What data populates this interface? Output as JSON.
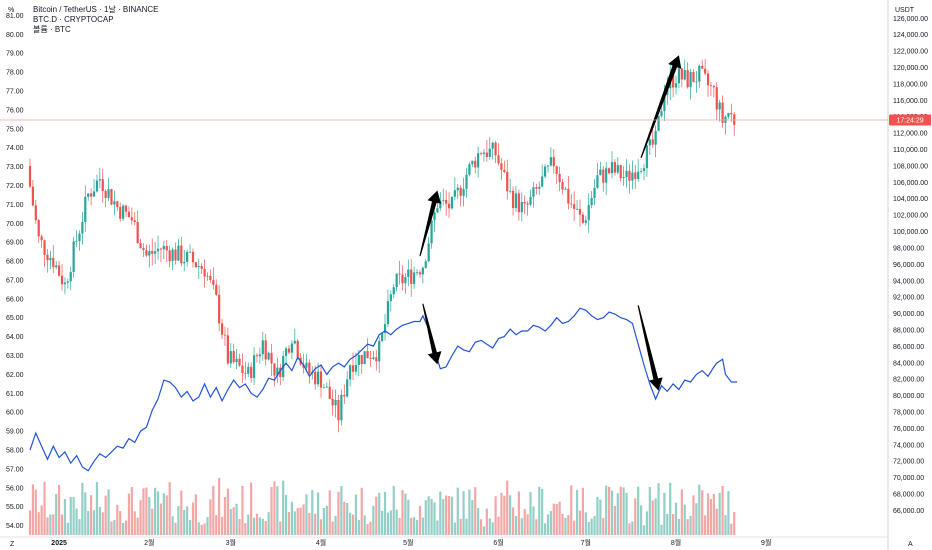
{
  "legend": {
    "line1": "Bitcoin / TetherUS · 1날 · BINANCE",
    "line2": "BTC.D · CRYPTOCAP",
    "line3": "볼륨 · BTC"
  },
  "left_axis": {
    "unit": "%",
    "min": 53.5,
    "max": 81.5,
    "ticks": [
      81,
      80,
      79,
      78,
      77,
      76,
      75,
      74,
      73,
      72,
      71,
      70,
      69,
      68,
      67,
      66,
      65,
      64,
      63,
      62,
      61,
      60,
      59,
      58,
      57,
      56,
      55,
      54
    ]
  },
  "right_axis": {
    "unit": "USDT",
    "min": 63000,
    "max": 127500,
    "ticks": [
      126000,
      124000,
      122000,
      120000,
      118000,
      116000,
      114000,
      112000,
      110000,
      108000,
      106000,
      104000,
      102000,
      100000,
      98000,
      96000,
      94000,
      92000,
      90000,
      88000,
      86000,
      84000,
      82000,
      80000,
      78000,
      76000,
      74000,
      72000,
      70000,
      68000,
      66000
    ],
    "tick_labels": [
      "126,000.00",
      "124,000.00",
      "122,000.00",
      "120,000.00",
      "118,000.00",
      "116,000.00",
      "114,000.00",
      "112,000.00",
      "110,000.00",
      "108,000.00",
      "106,000.00",
      "104,000.00",
      "102,000.00",
      "100,000.00",
      "98,000.00",
      "96,000.00",
      "94,000.00",
      "92,000.00",
      "90,000.00",
      "88,000.00",
      "86,000.00",
      "84,000.00",
      "82,000.00",
      "80,000.00",
      "78,000.00",
      "76,000.00",
      "74,000.00",
      "72,000.00",
      "70,000.00",
      "68,000.00",
      "66,000.00"
    ]
  },
  "price_tag": {
    "value": 113600,
    "label": "17:24:29"
  },
  "corner_left": "Z",
  "corner_right": "A",
  "colors": {
    "up": "#26a69a",
    "down": "#ef5350",
    "vol_up": "#93cfc7",
    "vol_down": "#f4a6a5",
    "dominance": "#2154d6",
    "arrow": "#000000",
    "price_line": "#f5a3a2"
  },
  "chart_data": [
    {
      "type": "candlestick",
      "name": "Bitcoin / TetherUS",
      "axis": "right",
      "x_axis_labels": [
        {
          "day": 10,
          "label": "2025"
        },
        {
          "day": 41,
          "label": "2월"
        },
        {
          "day": 69,
          "label": "3월"
        },
        {
          "day": 100,
          "label": "4월"
        },
        {
          "day": 130,
          "label": "5월"
        },
        {
          "day": 161,
          "label": "6월"
        },
        {
          "day": 191,
          "label": "7월"
        },
        {
          "day": 222,
          "label": "8월"
        },
        {
          "day": 253,
          "label": "9월"
        }
      ],
      "key_points": [
        {
          "day": 0,
          "close": 105500
        },
        {
          "day": 3,
          "close": 99000
        },
        {
          "day": 8,
          "close": 96500
        },
        {
          "day": 12,
          "close": 93500
        },
        {
          "day": 20,
          "close": 104500
        },
        {
          "day": 24,
          "close": 106500
        },
        {
          "day": 30,
          "close": 103000
        },
        {
          "day": 35,
          "close": 101500
        },
        {
          "day": 40,
          "close": 97000
        },
        {
          "day": 45,
          "close": 98000
        },
        {
          "day": 55,
          "close": 96500
        },
        {
          "day": 60,
          "close": 95500
        },
        {
          "day": 64,
          "close": 91500
        },
        {
          "day": 68,
          "close": 84500
        },
        {
          "day": 75,
          "close": 82500
        },
        {
          "day": 80,
          "close": 86500
        },
        {
          "day": 85,
          "close": 82500
        },
        {
          "day": 90,
          "close": 87500
        },
        {
          "day": 95,
          "close": 83000
        },
        {
          "day": 100,
          "close": 82000
        },
        {
          "day": 106,
          "close": 77500
        },
        {
          "day": 110,
          "close": 84000
        },
        {
          "day": 115,
          "close": 85000
        },
        {
          "day": 120,
          "close": 85500
        },
        {
          "day": 125,
          "close": 93500
        },
        {
          "day": 130,
          "close": 94500
        },
        {
          "day": 135,
          "close": 96000
        },
        {
          "day": 140,
          "close": 103500
        },
        {
          "day": 145,
          "close": 103000
        },
        {
          "day": 150,
          "close": 107000
        },
        {
          "day": 155,
          "close": 110000
        },
        {
          "day": 160,
          "close": 109500
        },
        {
          "day": 165,
          "close": 104500
        },
        {
          "day": 170,
          "close": 102500
        },
        {
          "day": 175,
          "close": 105500
        },
        {
          "day": 180,
          "close": 108500
        },
        {
          "day": 185,
          "close": 104000
        },
        {
          "day": 190,
          "close": 101000
        },
        {
          "day": 195,
          "close": 106500
        },
        {
          "day": 200,
          "close": 107500
        },
        {
          "day": 205,
          "close": 106500
        },
        {
          "day": 210,
          "close": 108500
        },
        {
          "day": 215,
          "close": 111000
        },
        {
          "day": 218,
          "close": 117500
        },
        {
          "day": 222,
          "close": 119000
        },
        {
          "day": 226,
          "close": 118500
        },
        {
          "day": 230,
          "close": 119000
        },
        {
          "day": 235,
          "close": 117000
        },
        {
          "day": 238,
          "close": 113500
        },
        {
          "day": 240,
          "close": 114500
        },
        {
          "day": 242,
          "close": 113600
        }
      ]
    },
    {
      "type": "line",
      "name": "BTC.D",
      "axis": "left",
      "points": [
        [
          0,
          58.0
        ],
        [
          2,
          58.9
        ],
        [
          4,
          58.2
        ],
        [
          6,
          57.5
        ],
        [
          8,
          58.2
        ],
        [
          10,
          57.6
        ],
        [
          12,
          57.9
        ],
        [
          14,
          57.3
        ],
        [
          16,
          57.7
        ],
        [
          18,
          57.1
        ],
        [
          20,
          56.9
        ],
        [
          22,
          57.4
        ],
        [
          24,
          57.8
        ],
        [
          26,
          57.6
        ],
        [
          28,
          57.9
        ],
        [
          30,
          58.2
        ],
        [
          32,
          58.1
        ],
        [
          34,
          58.6
        ],
        [
          36,
          58.4
        ],
        [
          38,
          59.0
        ],
        [
          40,
          59.2
        ],
        [
          42,
          60.1
        ],
        [
          44,
          60.7
        ],
        [
          46,
          61.7
        ],
        [
          48,
          61.6
        ],
        [
          50,
          61.3
        ],
        [
          52,
          60.8
        ],
        [
          54,
          61.1
        ],
        [
          56,
          60.6
        ],
        [
          58,
          60.8
        ],
        [
          60,
          61.5
        ],
        [
          62,
          60.8
        ],
        [
          64,
          61.3
        ],
        [
          66,
          60.6
        ],
        [
          68,
          61.2
        ],
        [
          70,
          61.7
        ],
        [
          72,
          61.3
        ],
        [
          74,
          61.5
        ],
        [
          76,
          61.0
        ],
        [
          78,
          60.8
        ],
        [
          80,
          61.2
        ],
        [
          82,
          61.8
        ],
        [
          84,
          61.7
        ],
        [
          86,
          62.2
        ],
        [
          88,
          62.6
        ],
        [
          90,
          62.2
        ],
        [
          92,
          62.9
        ],
        [
          94,
          62.5
        ],
        [
          96,
          61.9
        ],
        [
          98,
          62.3
        ],
        [
          100,
          62.5
        ],
        [
          102,
          62.0
        ],
        [
          104,
          62.4
        ],
        [
          106,
          62.6
        ],
        [
          108,
          62.4
        ],
        [
          110,
          62.8
        ],
        [
          112,
          63.0
        ],
        [
          114,
          63.3
        ],
        [
          116,
          63.6
        ],
        [
          118,
          63.5
        ],
        [
          120,
          64.1
        ],
        [
          122,
          64.3
        ],
        [
          124,
          64.1
        ],
        [
          126,
          64.4
        ],
        [
          128,
          64.6
        ],
        [
          130,
          64.7
        ],
        [
          132,
          64.8
        ],
        [
          134,
          64.8
        ],
        [
          135,
          65.1
        ],
        [
          137,
          64.4
        ],
        [
          139,
          63.3
        ],
        [
          141,
          62.3
        ],
        [
          143,
          62.4
        ],
        [
          145,
          63.0
        ],
        [
          147,
          63.5
        ],
        [
          149,
          63.3
        ],
        [
          151,
          63.2
        ],
        [
          153,
          63.7
        ],
        [
          155,
          63.8
        ],
        [
          157,
          63.6
        ],
        [
          159,
          63.4
        ],
        [
          161,
          63.9
        ],
        [
          163,
          64.0
        ],
        [
          165,
          64.4
        ],
        [
          167,
          64.1
        ],
        [
          169,
          64.3
        ],
        [
          171,
          64.3
        ],
        [
          173,
          64.6
        ],
        [
          175,
          64.5
        ],
        [
          177,
          64.3
        ],
        [
          179,
          64.6
        ],
        [
          181,
          65.0
        ],
        [
          183,
          64.7
        ],
        [
          185,
          64.8
        ],
        [
          187,
          65.1
        ],
        [
          189,
          65.5
        ],
        [
          191,
          65.4
        ],
        [
          193,
          65.1
        ],
        [
          195,
          64.9
        ],
        [
          197,
          65.0
        ],
        [
          199,
          65.3
        ],
        [
          201,
          65.2
        ],
        [
          203,
          65.0
        ],
        [
          205,
          64.9
        ],
        [
          207,
          64.7
        ],
        [
          209,
          63.6
        ],
        [
          211,
          62.5
        ],
        [
          213,
          61.5
        ],
        [
          215,
          60.7
        ],
        [
          217,
          61.4
        ],
        [
          219,
          61.1
        ],
        [
          221,
          61.5
        ],
        [
          223,
          61.2
        ],
        [
          225,
          61.7
        ],
        [
          227,
          61.6
        ],
        [
          229,
          62.0
        ],
        [
          231,
          62.2
        ],
        [
          233,
          61.9
        ],
        [
          235,
          62.4
        ],
        [
          236,
          62.6
        ],
        [
          238,
          62.8
        ],
        [
          239,
          62.0
        ],
        [
          241,
          61.6
        ],
        [
          243,
          61.6
        ]
      ]
    },
    {
      "type": "bar",
      "name": "볼륨 · BTC",
      "axis": "none"
    }
  ],
  "annotations": [
    {
      "type": "arrow",
      "from": {
        "day": 134,
        "y": 97000
      },
      "to": {
        "day": 140,
        "y": 105000
      }
    },
    {
      "type": "arrow",
      "from": {
        "day": 210,
        "y": 109000
      },
      "to": {
        "day": 223,
        "y": 121500
      }
    },
    {
      "type": "arrow",
      "from": {
        "day": 135,
        "y": 91200
      },
      "to": {
        "day": 140,
        "y": 83800
      }
    },
    {
      "type": "arrow",
      "from": {
        "day": 209,
        "y": 91000
      },
      "to": {
        "day": 216,
        "y": 80600
      }
    }
  ]
}
